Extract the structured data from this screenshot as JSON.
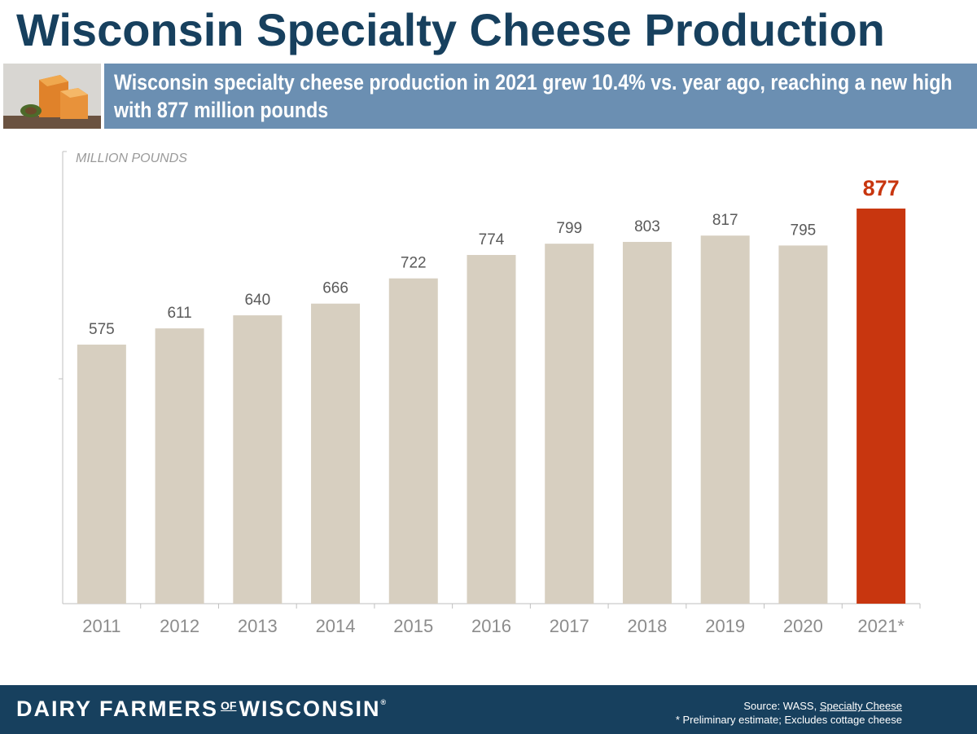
{
  "title": "Wisconsin Specialty Cheese Production",
  "banner": {
    "text": "Wisconsin specialty cheese production in 2021 grew 10.4% vs. year ago, reaching a new high with 877 million pounds"
  },
  "chart_data": {
    "type": "bar",
    "ylabel": "MILLION POUNDS",
    "categories": [
      "2011",
      "2012",
      "2013",
      "2014",
      "2015",
      "2016",
      "2017",
      "2018",
      "2019",
      "2020",
      "2021*"
    ],
    "values": [
      575,
      611,
      640,
      666,
      722,
      774,
      799,
      803,
      817,
      795,
      877
    ],
    "ylim": [
      0,
      1000
    ],
    "highlight_index": 10,
    "colors": {
      "bar": "#d7cfc0",
      "highlight": "#c8360f",
      "label": "#5a5a5a",
      "highlight_label": "#c8360f",
      "axis": "#bfbfbf",
      "tick_label": "#8c8c8c"
    },
    "grid": false
  },
  "footer": {
    "logo": {
      "part1": "DAIRY FARMERS",
      "of": "OF",
      "part2": "WISCONSIN",
      "reg": "®"
    },
    "source_prefix": "Source: WASS, ",
    "source_link": "Specialty Cheese",
    "note": "* Preliminary estimate; Excludes cottage cheese"
  },
  "colors": {
    "title": "#17405e",
    "banner_bg": "#6b8fb2",
    "footer_bg": "#17405e"
  }
}
